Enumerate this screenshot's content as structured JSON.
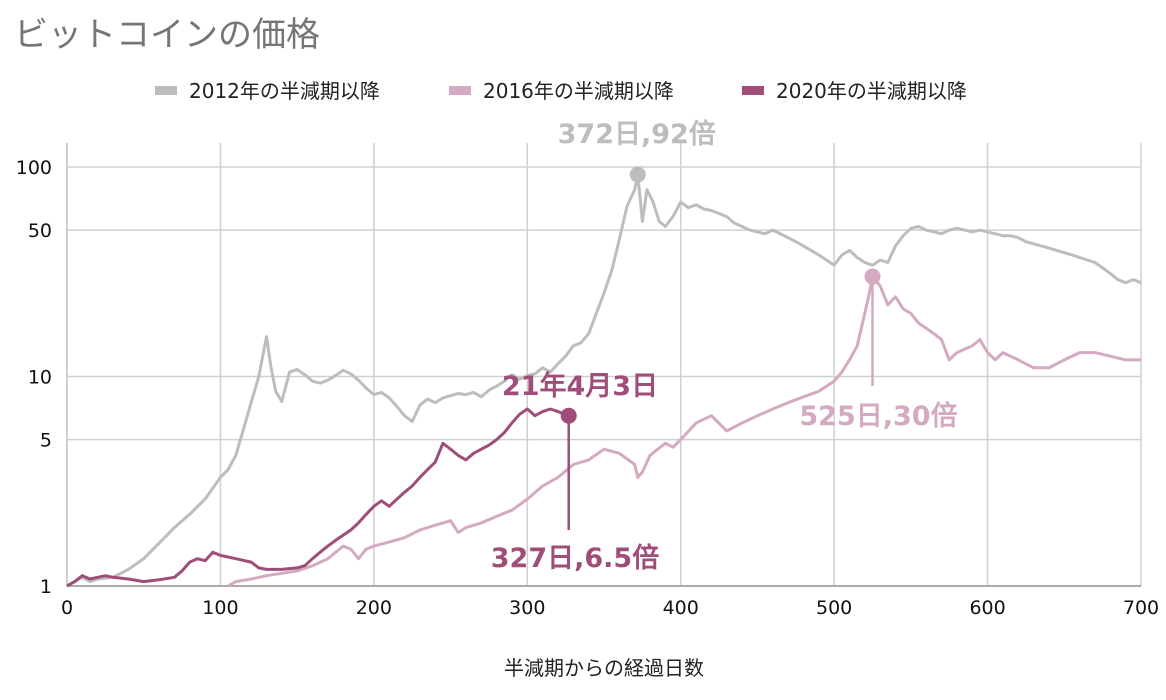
{
  "chart_data": {
    "type": "line",
    "title": "ビットコインの価格",
    "xlabel": "半減期からの経過日数",
    "ylabel": "",
    "y_scale": "log",
    "xlim": [
      0,
      700
    ],
    "ylim": [
      1,
      160
    ],
    "x_ticks": [
      0,
      100,
      200,
      300,
      400,
      500,
      600,
      700
    ],
    "y_ticks": [
      1,
      5,
      10,
      50,
      100
    ],
    "grid": true,
    "legend_position": "top",
    "series": [
      {
        "name": "2012年の半減期以降",
        "color": "#bdbdbd",
        "points": [
          [
            0,
            1
          ],
          [
            5,
            1.05
          ],
          [
            10,
            1.1
          ],
          [
            15,
            1.05
          ],
          [
            20,
            1.08
          ],
          [
            30,
            1.1
          ],
          [
            40,
            1.2
          ],
          [
            50,
            1.35
          ],
          [
            60,
            1.6
          ],
          [
            70,
            1.9
          ],
          [
            80,
            2.2
          ],
          [
            90,
            2.6
          ],
          [
            100,
            3.3
          ],
          [
            105,
            3.6
          ],
          [
            110,
            4.2
          ],
          [
            115,
            5.6
          ],
          [
            120,
            7.5
          ],
          [
            125,
            10
          ],
          [
            130,
            15.5
          ],
          [
            133,
            11
          ],
          [
            136,
            8.5
          ],
          [
            140,
            7.6
          ],
          [
            145,
            10.5
          ],
          [
            150,
            10.8
          ],
          [
            155,
            10.2
          ],
          [
            160,
            9.5
          ],
          [
            165,
            9.3
          ],
          [
            170,
            9.6
          ],
          [
            175,
            10.1
          ],
          [
            180,
            10.7
          ],
          [
            185,
            10.3
          ],
          [
            190,
            9.6
          ],
          [
            195,
            8.8
          ],
          [
            200,
            8.2
          ],
          [
            205,
            8.4
          ],
          [
            210,
            7.9
          ],
          [
            215,
            7.2
          ],
          [
            220,
            6.5
          ],
          [
            225,
            6.1
          ],
          [
            230,
            7.3
          ],
          [
            235,
            7.8
          ],
          [
            240,
            7.5
          ],
          [
            245,
            7.9
          ],
          [
            250,
            8.1
          ],
          [
            255,
            8.3
          ],
          [
            260,
            8.2
          ],
          [
            265,
            8.4
          ],
          [
            270,
            8.0
          ],
          [
            275,
            8.6
          ],
          [
            280,
            9.0
          ],
          [
            285,
            9.5
          ],
          [
            290,
            10.2
          ],
          [
            295,
            9.7
          ],
          [
            300,
            10.1
          ],
          [
            305,
            10.3
          ],
          [
            310,
            11
          ],
          [
            315,
            10.5
          ],
          [
            320,
            11.5
          ],
          [
            325,
            12.5
          ],
          [
            330,
            14
          ],
          [
            335,
            14.5
          ],
          [
            340,
            16
          ],
          [
            345,
            20
          ],
          [
            350,
            25
          ],
          [
            355,
            32
          ],
          [
            360,
            45
          ],
          [
            365,
            65
          ],
          [
            370,
            78
          ],
          [
            372,
            92
          ],
          [
            375,
            55
          ],
          [
            378,
            78
          ],
          [
            382,
            68
          ],
          [
            386,
            55
          ],
          [
            390,
            52
          ],
          [
            395,
            58
          ],
          [
            400,
            68
          ],
          [
            405,
            64
          ],
          [
            410,
            66
          ],
          [
            415,
            63
          ],
          [
            420,
            62
          ],
          [
            425,
            60
          ],
          [
            430,
            58
          ],
          [
            435,
            54
          ],
          [
            440,
            52
          ],
          [
            445,
            50
          ],
          [
            450,
            49
          ],
          [
            455,
            48
          ],
          [
            460,
            50
          ],
          [
            465,
            48
          ],
          [
            470,
            46
          ],
          [
            475,
            44
          ],
          [
            480,
            42
          ],
          [
            485,
            40
          ],
          [
            490,
            38
          ],
          [
            495,
            36
          ],
          [
            500,
            34
          ],
          [
            505,
            38
          ],
          [
            510,
            40
          ],
          [
            515,
            37
          ],
          [
            520,
            35
          ],
          [
            525,
            34
          ],
          [
            530,
            36
          ],
          [
            535,
            35
          ],
          [
            540,
            42
          ],
          [
            545,
            47
          ],
          [
            550,
            51
          ],
          [
            555,
            52
          ],
          [
            560,
            50
          ],
          [
            565,
            49
          ],
          [
            570,
            48
          ],
          [
            575,
            50
          ],
          [
            580,
            51
          ],
          [
            585,
            50
          ],
          [
            590,
            49
          ],
          [
            595,
            50
          ],
          [
            600,
            49
          ],
          [
            605,
            48
          ],
          [
            610,
            47
          ],
          [
            615,
            47
          ],
          [
            620,
            46
          ],
          [
            625,
            44
          ],
          [
            630,
            43
          ],
          [
            635,
            42
          ],
          [
            640,
            41
          ],
          [
            645,
            40
          ],
          [
            650,
            39
          ],
          [
            655,
            38
          ],
          [
            660,
            37
          ],
          [
            665,
            36
          ],
          [
            670,
            35
          ],
          [
            675,
            33
          ],
          [
            680,
            31
          ],
          [
            685,
            29
          ],
          [
            690,
            28
          ],
          [
            695,
            29
          ],
          [
            700,
            28
          ]
        ]
      },
      {
        "name": "2016年の半減期以降",
        "color": "#d4a9c2",
        "points": [
          [
            105,
            1
          ],
          [
            110,
            1.05
          ],
          [
            120,
            1.08
          ],
          [
            130,
            1.12
          ],
          [
            140,
            1.15
          ],
          [
            150,
            1.18
          ],
          [
            160,
            1.25
          ],
          [
            170,
            1.35
          ],
          [
            180,
            1.55
          ],
          [
            185,
            1.5
          ],
          [
            190,
            1.35
          ],
          [
            195,
            1.5
          ],
          [
            200,
            1.55
          ],
          [
            210,
            1.62
          ],
          [
            220,
            1.7
          ],
          [
            230,
            1.85
          ],
          [
            240,
            1.95
          ],
          [
            250,
            2.05
          ],
          [
            255,
            1.8
          ],
          [
            260,
            1.9
          ],
          [
            270,
            2.0
          ],
          [
            280,
            2.15
          ],
          [
            290,
            2.3
          ],
          [
            300,
            2.6
          ],
          [
            310,
            3.0
          ],
          [
            320,
            3.3
          ],
          [
            330,
            3.8
          ],
          [
            340,
            4.0
          ],
          [
            350,
            4.5
          ],
          [
            360,
            4.3
          ],
          [
            370,
            3.8
          ],
          [
            372,
            3.3
          ],
          [
            375,
            3.5
          ],
          [
            380,
            4.2
          ],
          [
            385,
            4.5
          ],
          [
            390,
            4.8
          ],
          [
            395,
            4.6
          ],
          [
            400,
            5.0
          ],
          [
            410,
            6.0
          ],
          [
            420,
            6.5
          ],
          [
            430,
            5.5
          ],
          [
            440,
            6.0
          ],
          [
            450,
            6.5
          ],
          [
            460,
            7.0
          ],
          [
            470,
            7.5
          ],
          [
            480,
            8.0
          ],
          [
            490,
            8.5
          ],
          [
            500,
            9.5
          ],
          [
            505,
            10.5
          ],
          [
            510,
            12
          ],
          [
            515,
            14
          ],
          [
            520,
            20
          ],
          [
            523,
            25
          ],
          [
            525,
            30
          ],
          [
            530,
            27
          ],
          [
            535,
            22
          ],
          [
            540,
            24
          ],
          [
            545,
            21
          ],
          [
            550,
            20
          ],
          [
            555,
            18
          ],
          [
            560,
            17
          ],
          [
            565,
            16
          ],
          [
            570,
            15
          ],
          [
            575,
            12
          ],
          [
            580,
            13
          ],
          [
            590,
            14
          ],
          [
            595,
            15
          ],
          [
            600,
            13
          ],
          [
            605,
            12
          ],
          [
            610,
            13
          ],
          [
            620,
            12
          ],
          [
            630,
            11
          ],
          [
            640,
            11
          ],
          [
            650,
            12
          ],
          [
            660,
            13
          ],
          [
            670,
            13
          ],
          [
            680,
            12.5
          ],
          [
            690,
            12
          ],
          [
            700,
            12
          ]
        ]
      },
      {
        "name": "2020年の半減期以降",
        "color": "#9e4e78",
        "points": [
          [
            0,
            1
          ],
          [
            5,
            1.05
          ],
          [
            10,
            1.12
          ],
          [
            15,
            1.08
          ],
          [
            20,
            1.1
          ],
          [
            25,
            1.12
          ],
          [
            30,
            1.1
          ],
          [
            40,
            1.08
          ],
          [
            50,
            1.05
          ],
          [
            60,
            1.07
          ],
          [
            70,
            1.1
          ],
          [
            75,
            1.18
          ],
          [
            80,
            1.3
          ],
          [
            85,
            1.35
          ],
          [
            90,
            1.32
          ],
          [
            95,
            1.45
          ],
          [
            100,
            1.4
          ],
          [
            110,
            1.35
          ],
          [
            120,
            1.3
          ],
          [
            125,
            1.22
          ],
          [
            130,
            1.2
          ],
          [
            140,
            1.2
          ],
          [
            150,
            1.22
          ],
          [
            155,
            1.25
          ],
          [
            160,
            1.35
          ],
          [
            165,
            1.45
          ],
          [
            170,
            1.55
          ],
          [
            175,
            1.65
          ],
          [
            180,
            1.75
          ],
          [
            185,
            1.85
          ],
          [
            190,
            2.0
          ],
          [
            195,
            2.2
          ],
          [
            200,
            2.4
          ],
          [
            205,
            2.55
          ],
          [
            210,
            2.4
          ],
          [
            215,
            2.6
          ],
          [
            220,
            2.8
          ],
          [
            225,
            3.0
          ],
          [
            230,
            3.3
          ],
          [
            235,
            3.6
          ],
          [
            240,
            3.9
          ],
          [
            245,
            4.8
          ],
          [
            250,
            4.5
          ],
          [
            255,
            4.2
          ],
          [
            260,
            4.0
          ],
          [
            265,
            4.3
          ],
          [
            270,
            4.5
          ],
          [
            275,
            4.7
          ],
          [
            280,
            5.0
          ],
          [
            285,
            5.4
          ],
          [
            290,
            6.0
          ],
          [
            295,
            6.6
          ],
          [
            300,
            7.0
          ],
          [
            305,
            6.5
          ],
          [
            310,
            6.8
          ],
          [
            315,
            7.0
          ],
          [
            320,
            6.8
          ],
          [
            325,
            6.6
          ],
          [
            327,
            6.5
          ]
        ]
      }
    ],
    "annotations": [
      {
        "series": "2012年の半減期以降",
        "x": 372,
        "y": 92,
        "label": "372日,92倍"
      },
      {
        "series": "2016年の半減期以降",
        "x": 525,
        "y": 30,
        "label": "525日,30倍"
      },
      {
        "series": "2020年の半減期以降",
        "x": 327,
        "y": 6.5,
        "label": "327日,6.5倍",
        "date_label": "21年4月3日"
      }
    ]
  }
}
